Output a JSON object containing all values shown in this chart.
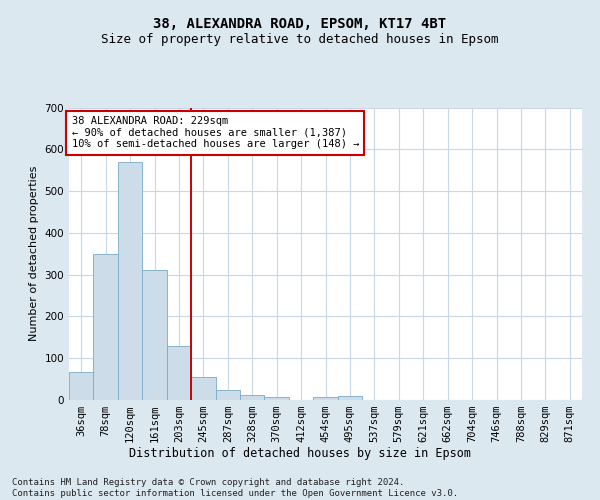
{
  "title1": "38, ALEXANDRA ROAD, EPSOM, KT17 4BT",
  "title2": "Size of property relative to detached houses in Epsom",
  "xlabel": "Distribution of detached houses by size in Epsom",
  "ylabel": "Number of detached properties",
  "categories": [
    "36sqm",
    "78sqm",
    "120sqm",
    "161sqm",
    "203sqm",
    "245sqm",
    "287sqm",
    "328sqm",
    "370sqm",
    "412sqm",
    "454sqm",
    "495sqm",
    "537sqm",
    "579sqm",
    "621sqm",
    "662sqm",
    "704sqm",
    "746sqm",
    "788sqm",
    "829sqm",
    "871sqm"
  ],
  "values": [
    68,
    350,
    570,
    312,
    130,
    56,
    25,
    13,
    7,
    0,
    7,
    10,
    0,
    0,
    0,
    0,
    0,
    0,
    0,
    0,
    0
  ],
  "bar_color": "#ccdce8",
  "bar_edge_color": "#7aaac8",
  "vline_x_index": 4.5,
  "vline_color": "#cc0000",
  "annotation_text": "38 ALEXANDRA ROAD: 229sqm\n← 90% of detached houses are smaller (1,387)\n10% of semi-detached houses are larger (148) →",
  "annotation_box_color": "#ffffff",
  "annotation_box_edge": "#cc0000",
  "ylim": [
    0,
    700
  ],
  "yticks": [
    0,
    100,
    200,
    300,
    400,
    500,
    600,
    700
  ],
  "fig_bg_color": "#dce8f0",
  "plot_bg_color": "#ffffff",
  "footer_text": "Contains HM Land Registry data © Crown copyright and database right 2024.\nContains public sector information licensed under the Open Government Licence v3.0.",
  "title1_fontsize": 10,
  "title2_fontsize": 9,
  "xlabel_fontsize": 8.5,
  "ylabel_fontsize": 8,
  "tick_fontsize": 7.5,
  "annotation_fontsize": 7.5,
  "footer_fontsize": 6.5
}
